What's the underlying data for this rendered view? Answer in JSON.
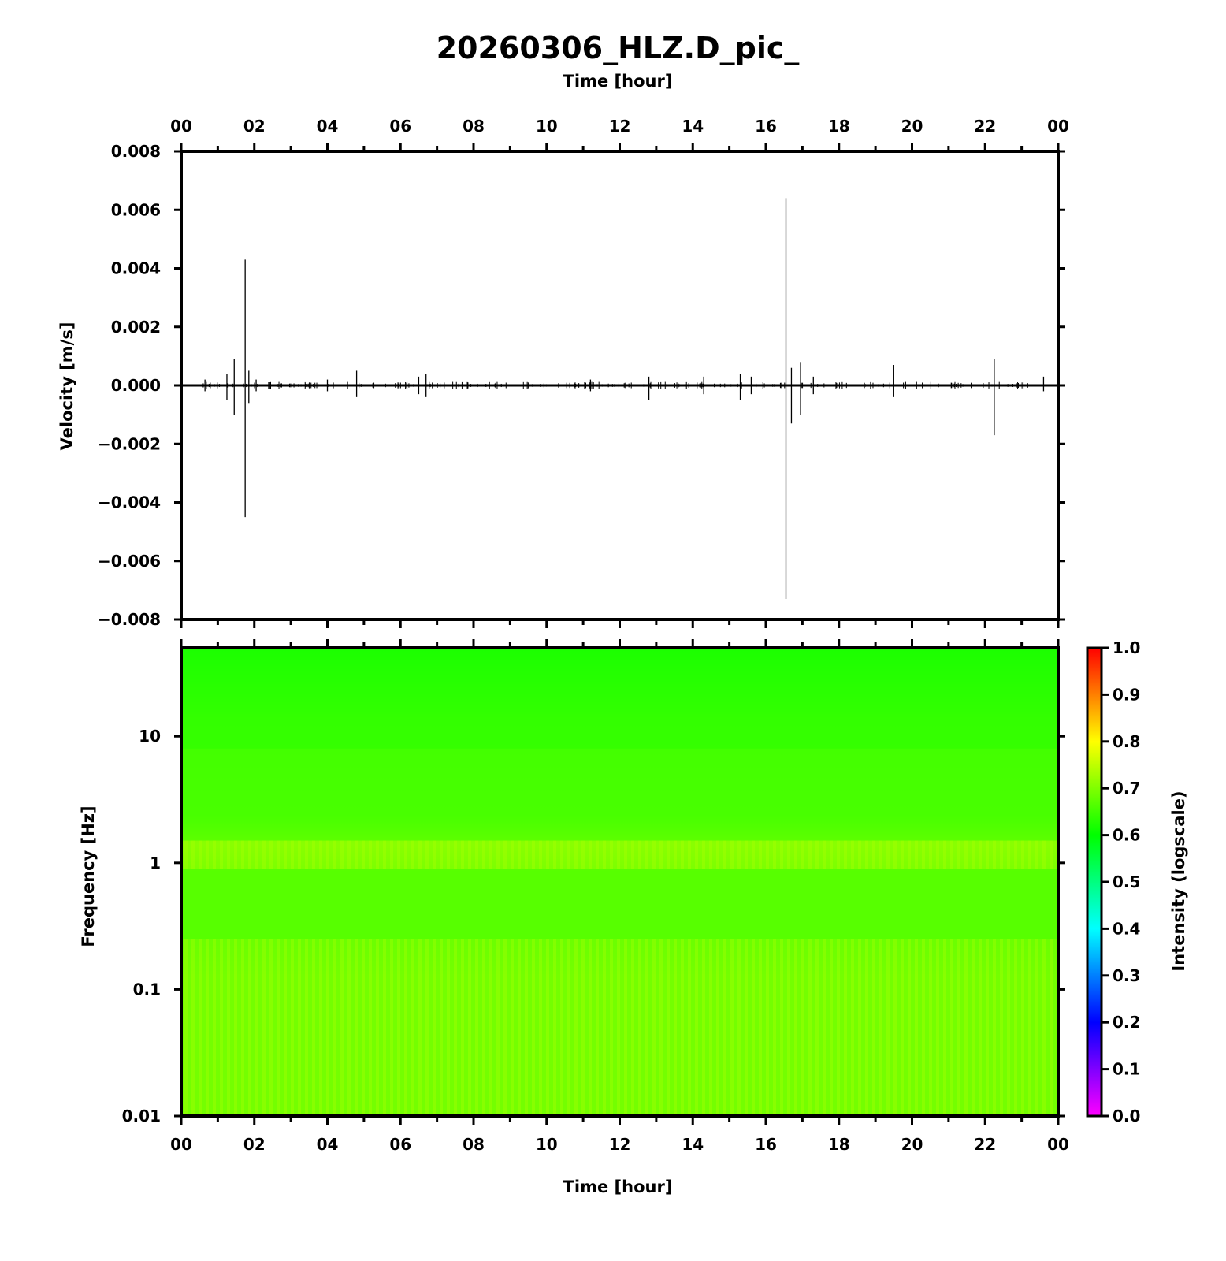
{
  "title": "20260306_HLZ.D_pic_",
  "chart_data": [
    {
      "type": "line",
      "panel": "seismogram",
      "title": "20260306_HLZ.D_pic_",
      "xlabel": "Time [hour]",
      "ylabel": "Velocity [m/s]",
      "xlim": [
        0,
        24
      ],
      "ylim": [
        -0.008,
        0.008
      ],
      "x_tick_labels": [
        "00",
        "02",
        "04",
        "06",
        "08",
        "10",
        "12",
        "14",
        "16",
        "18",
        "20",
        "22",
        "00"
      ],
      "y_tick_labels": [
        "0.008",
        "0.006",
        "0.004",
        "0.002",
        "0.000",
        "−0.002",
        "−0.004",
        "−0.006",
        "−0.008"
      ],
      "y_tick_values": [
        0.008,
        0.006,
        0.004,
        0.002,
        0.0,
        -0.002,
        -0.004,
        -0.006,
        -0.008
      ],
      "series": [
        {
          "color": "#000000",
          "spikes": [
            {
              "t": 0.65,
              "max": 0.0002,
              "min": -0.0002
            },
            {
              "t": 1.25,
              "max": 0.0004,
              "min": -0.0005
            },
            {
              "t": 1.45,
              "max": 0.0009,
              "min": -0.001
            },
            {
              "t": 1.75,
              "max": 0.0043,
              "min": -0.0045
            },
            {
              "t": 1.85,
              "max": 0.0005,
              "min": -0.0006
            },
            {
              "t": 2.05,
              "max": 0.0002,
              "min": -0.0002
            },
            {
              "t": 4.0,
              "max": 0.0002,
              "min": -0.0002
            },
            {
              "t": 4.8,
              "max": 0.0005,
              "min": -0.0004
            },
            {
              "t": 6.5,
              "max": 0.0003,
              "min": -0.0003
            },
            {
              "t": 6.7,
              "max": 0.0004,
              "min": -0.0004
            },
            {
              "t": 11.2,
              "max": 0.0002,
              "min": -0.0002
            },
            {
              "t": 12.8,
              "max": 0.0003,
              "min": -0.0005
            },
            {
              "t": 14.3,
              "max": 0.0003,
              "min": -0.0003
            },
            {
              "t": 15.3,
              "max": 0.0004,
              "min": -0.0005
            },
            {
              "t": 15.6,
              "max": 0.0003,
              "min": -0.0003
            },
            {
              "t": 16.55,
              "max": 0.0064,
              "min": -0.0073
            },
            {
              "t": 16.7,
              "max": 0.0006,
              "min": -0.0013
            },
            {
              "t": 16.95,
              "max": 0.0008,
              "min": -0.001
            },
            {
              "t": 17.3,
              "max": 0.0003,
              "min": -0.0003
            },
            {
              "t": 19.5,
              "max": 0.0007,
              "min": -0.0004
            },
            {
              "t": 22.25,
              "max": 0.0009,
              "min": -0.0017
            },
            {
              "t": 23.6,
              "max": 0.0003,
              "min": -0.0002
            }
          ],
          "noise_level": 4e-05
        }
      ]
    },
    {
      "type": "heatmap",
      "panel": "spectrogram",
      "xlabel": "Time [hour]",
      "ylabel": "Frequency [Hz]",
      "xlim": [
        0,
        24
      ],
      "ylim": [
        0.01,
        50
      ],
      "y_scale": "log",
      "x_tick_labels": [
        "00",
        "02",
        "04",
        "06",
        "08",
        "10",
        "12",
        "14",
        "16",
        "18",
        "20",
        "22",
        "00"
      ],
      "y_tick_labels": [
        "10",
        "1",
        "0.1",
        "0.01"
      ],
      "y_tick_values": [
        10,
        1,
        0.1,
        0.01
      ],
      "colorbar": {
        "label": "Intensity (logscale)",
        "range": [
          0.0,
          1.0
        ],
        "tick_labels": [
          "1.0",
          "0.9",
          "0.8",
          "0.7",
          "0.6",
          "0.5",
          "0.4",
          "0.3",
          "0.2",
          "0.1",
          "0.0"
        ],
        "colors": [
          "#ff00ff",
          "#0000ff",
          "#00ffff",
          "#00ff00",
          "#ffff00",
          "#ff0000"
        ]
      },
      "bands": [
        {
          "f_low": 8,
          "f_high": 50,
          "intensity": 0.64
        },
        {
          "f_low": 1.5,
          "f_high": 8,
          "intensity": 0.66
        },
        {
          "f_low": 0.9,
          "f_high": 1.5,
          "intensity": 0.72
        },
        {
          "f_low": 0.25,
          "f_high": 0.9,
          "intensity": 0.67
        },
        {
          "f_low": 0.01,
          "f_high": 0.25,
          "intensity": 0.7
        }
      ]
    }
  ]
}
